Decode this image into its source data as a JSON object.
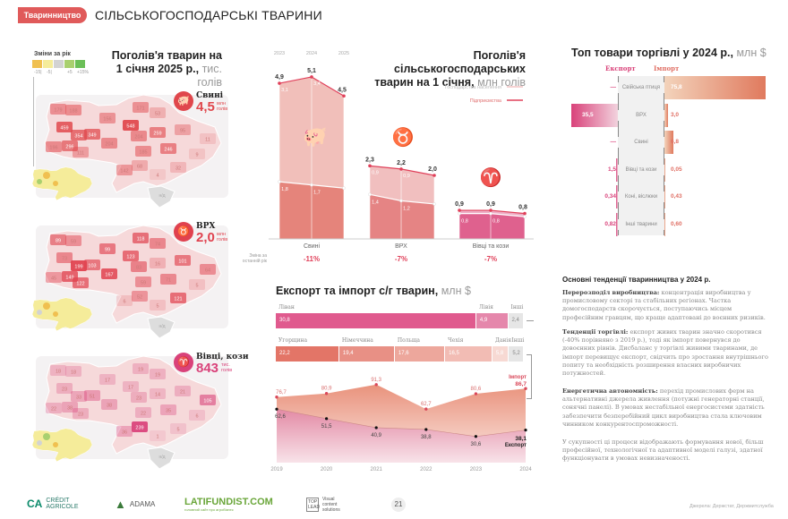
{
  "header": {
    "section": "Тваринництво",
    "title": "СІЛЬСЬКОГОСПОДАРСЬКІ ТВАРИНИ"
  },
  "legend": {
    "title": "Зміни за рік",
    "labels": [
      "-15|",
      "-5|",
      "+5",
      "+15%"
    ],
    "colors": [
      "#f0c050",
      "#f5ec9a",
      "#d3d3d3",
      "#a9d06f",
      "#6bbf58"
    ]
  },
  "maps_title": {
    "line1": "Поголів'я тварин на",
    "line2": "1 січня 2025 р.,",
    "unit": "тис. голів"
  },
  "maps": [
    {
      "name": "Свині",
      "value": "4,5",
      "unit": "млн голів",
      "color": "#e0474c",
      "icon": "pig-icon",
      "na": "н/д",
      "regions": [
        179,
        188,
        156,
        171,
        53,
        459,
        548,
        354,
        349,
        204,
        204,
        259,
        95,
        11,
        196,
        296,
        111,
        185,
        246,
        9,
        68,
        142,
        32,
        4
      ]
    },
    {
      "name": "ВРХ",
      "value": "2,0",
      "unit": "млн голів",
      "color": "#e0424f",
      "icon": "cow-icon",
      "na": "н/д",
      "regions": [
        89,
        59,
        99,
        118,
        74,
        73,
        123,
        199,
        103,
        167,
        83,
        16,
        101,
        64,
        45,
        149,
        122,
        59,
        71,
        5,
        52,
        6,
        121,
        5
      ]
    },
    {
      "name": "Вівці, кози",
      "value": "843",
      "unit": "тис. голів",
      "color": "#d9427a",
      "icon": "ram-icon",
      "na": "н/д",
      "regions": [
        18,
        18,
        17,
        19,
        19,
        23,
        17,
        33,
        51,
        38,
        23,
        14,
        21,
        105,
        22,
        38,
        23,
        22,
        35,
        6,
        239,
        36,
        5,
        1
      ]
    }
  ],
  "herd": {
    "title1": "Поголів'я сільськогосподарських",
    "title2": "тварин на 1 січня,",
    "unit": "млн голів",
    "years": [
      "2023",
      "2024",
      "2025"
    ],
    "legend": [
      "Господарства населення",
      "Підприємства"
    ],
    "change_label": "Зміна за останній рік",
    "groups": [
      {
        "name": "Свині",
        "total": [
          "4,9",
          "5,1",
          "4,5"
        ],
        "upper": [
          "3,1",
          "3,4",
          "2,9"
        ],
        "lower": [
          "1,8",
          "1,7",
          "1,6"
        ],
        "change": "-11%",
        "t": [
          4.9,
          5.1,
          4.5
        ],
        "l": [
          1.8,
          1.7,
          1.6
        ],
        "color": "#e07065"
      },
      {
        "name": "ВРХ",
        "total": [
          "2,3",
          "2,2",
          "2,0"
        ],
        "upper": [
          "0,9",
          "0,9",
          "0,9"
        ],
        "lower": [
          "1,4",
          "1,2",
          "1,1"
        ],
        "change": "-7%",
        "t": [
          2.3,
          2.2,
          2.0
        ],
        "l": [
          1.4,
          1.2,
          1.1
        ],
        "color": "#e07070"
      },
      {
        "name": "Вівці та кози",
        "total": [
          "0,9",
          "0,9",
          "0,8"
        ],
        "upper": [],
        "lower": [
          "0,8",
          "0,8",
          "0,7"
        ],
        "change": "-7%",
        "t": [
          0.9,
          0.9,
          0.8
        ],
        "l": [
          0.8,
          0.8,
          0.7
        ],
        "color": "#d9487c"
      }
    ]
  },
  "trade": {
    "title": "Топ товари торгівлі у 2024 р.,",
    "unit": "млн $",
    "export_label": "Експорт",
    "import_label": "Імпорт",
    "rows": [
      {
        "name": "Свійська птиця",
        "export": "—",
        "import": "75,8",
        "e": 0,
        "i": 75.8
      },
      {
        "name": "ВРХ",
        "export": "35,5",
        "import": "3,0",
        "e": 35.5,
        "i": 3.0
      },
      {
        "name": "Свині",
        "export": "—",
        "import": "6,8",
        "e": 0,
        "i": 6.8
      },
      {
        "name": "Вівці та кози",
        "export": "1,5",
        "import": "0,05",
        "e": 1.5,
        "i": 0.05
      },
      {
        "name": "Коні, віслюки",
        "export": "0,34",
        "import": "0,43",
        "e": 0.34,
        "i": 0.43
      },
      {
        "name": "Інші тварини",
        "export": "0,82",
        "import": "0,60",
        "e": 0.82,
        "i": 0.6
      }
    ]
  },
  "flows": {
    "title": "Експорт та імпорт с/г тварин,",
    "unit": "млн $",
    "export_countries": [
      {
        "name": "Ліван",
        "value": "30,8",
        "v": 30.8
      },
      {
        "name": "Лівія",
        "value": "4,9",
        "v": 4.9
      },
      {
        "name": "Інші",
        "value": "2,4",
        "v": 2.4
      }
    ],
    "import_countries": [
      {
        "name": "Угорщина",
        "value": "22,2",
        "v": 22.2
      },
      {
        "name": "Німеччина",
        "value": "19,4",
        "v": 19.4
      },
      {
        "name": "Польща",
        "value": "17,6",
        "v": 17.6
      },
      {
        "name": "Чехія",
        "value": "16,5",
        "v": 16.5
      },
      {
        "name": "Данія",
        "value": "5,8",
        "v": 5.8
      },
      {
        "name": "Інші",
        "value": "5,2",
        "v": 5.2
      }
    ]
  },
  "chart_data": {
    "type": "area",
    "x": [
      "2019",
      "2020",
      "2021",
      "2022",
      "2023",
      "2024"
    ],
    "series": [
      {
        "name": "Імпорт",
        "values": [
          76.7,
          80.9,
          91.3,
          62.7,
          80.6,
          86.7
        ],
        "labels": [
          "76,7",
          "80,9",
          "91,3",
          "62,7",
          "80,6",
          "86,7"
        ]
      },
      {
        "name": "Експорт",
        "values": [
          62.6,
          51.5,
          40.9,
          38.8,
          30.6,
          38.1
        ],
        "labels": [
          "62,6",
          "51,5",
          "40,9",
          "38,8",
          "30,6",
          "38,1"
        ]
      }
    ]
  },
  "trends": {
    "title": "Основні тенденції тваринництва у 2024 р.",
    "p1_head": "Перерозподіл виробництва:",
    "p1": " концентрація виробництва у промисловому секторі та стабільних регіонах. Частка домогосподарств скорочується, поступаючись місцем професійним гравцям, що краще адаптовані до воєнних ризиків.",
    "p2_head": "Тенденції торгівлі:",
    "p2": " експорт живих тварин значно скоротився (-40% порівняно з 2019 р.), тоді як імпорт повернувся до довоєнних рівнів. Дисбаланс у торгівлі живими тваринами, де імпорт перевищує експорт, свідчить про зростання внутрішнього попиту та необхідність розширення власних виробничих потужностей.",
    "p3_head": "Енергетична автономність:",
    "p3": " перехід промислових ферм на альтернативні джерела живлення (потужні генераторні станції, сонячні панелі). В умовах нестабільної енергосистеми здатність забезпечити безперебійний цикл виробництва стала ключовим чинником конкурентоспроможності.",
    "p4": "У сукупності ці процеси відображають формування нової, більш професійної, технологічної та адаптивної моделі галузі, здатної функціонувати в умовах невизначеності."
  },
  "footer": {
    "logos": [
      "CRÉDIT AGRICOLE",
      "ADAMA",
      "LATIFUNDIST.COM",
      "головний сайт про агробізнес",
      "TOP LEAD",
      "Visual content solutions"
    ],
    "page": "21",
    "source": "Джерела: Держстат, Держмитслужба"
  }
}
